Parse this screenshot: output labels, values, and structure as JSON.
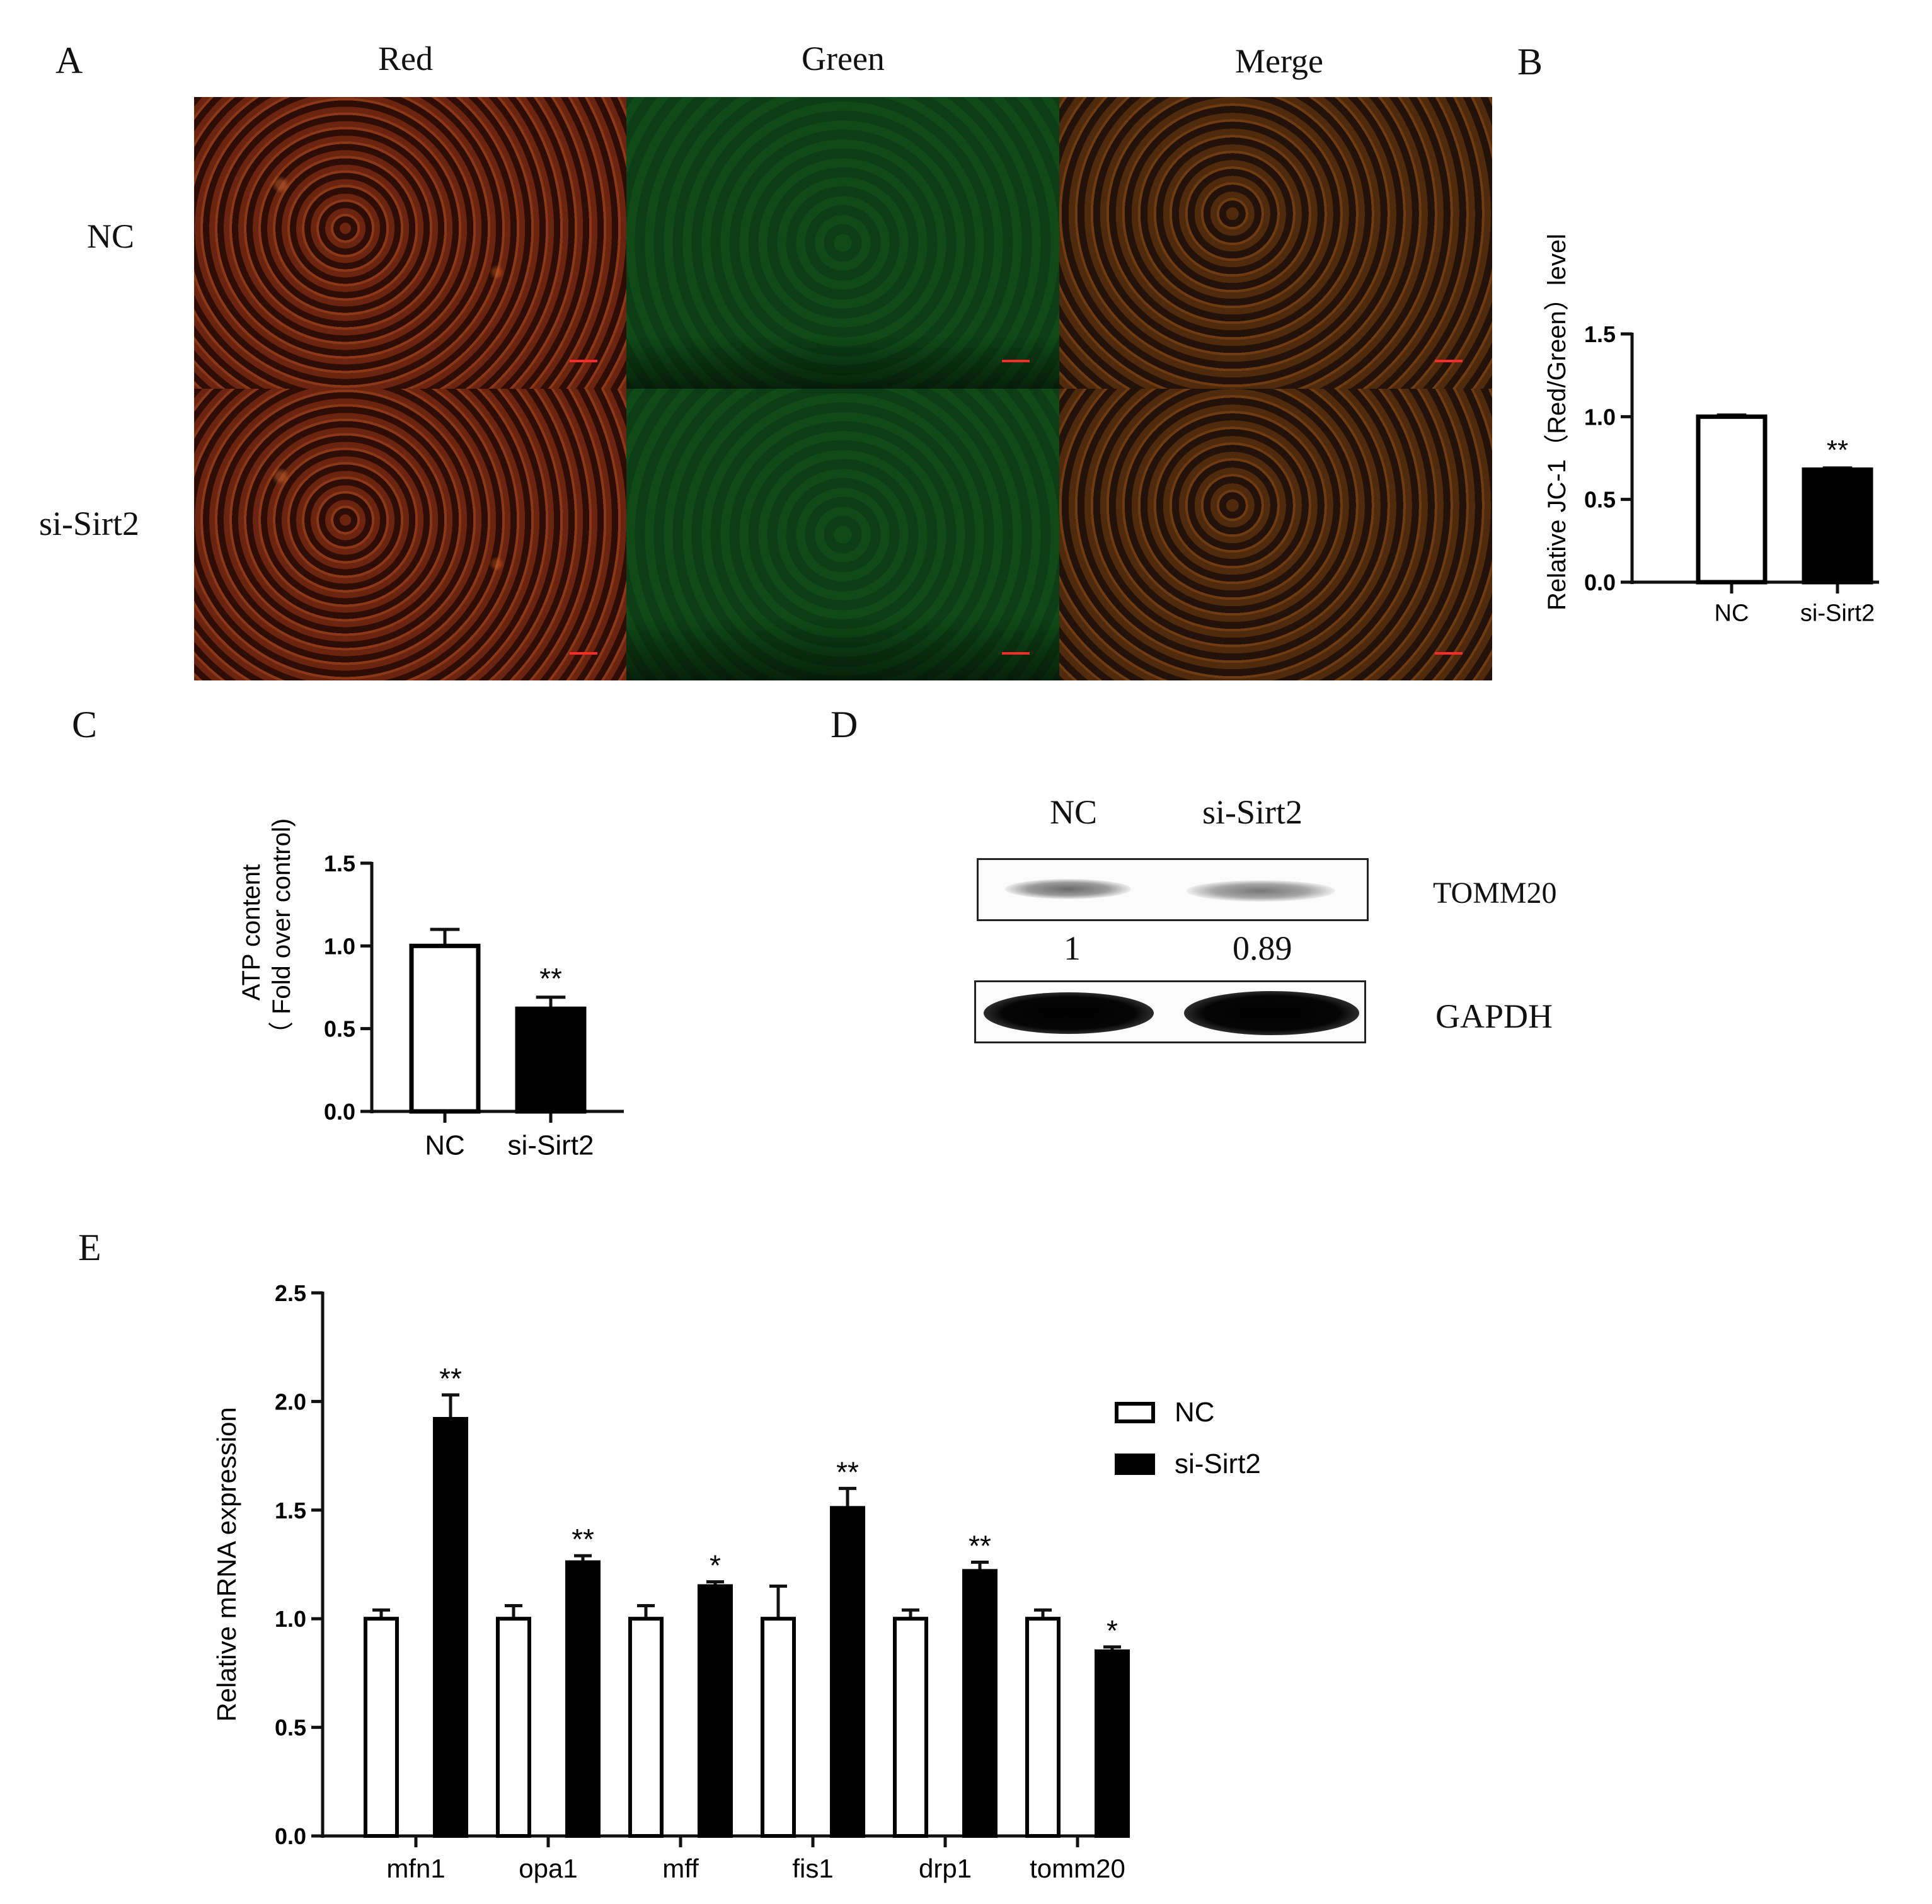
{
  "panels": {
    "a": {
      "letter": "A",
      "columns": [
        "Red",
        "Green",
        "Merge"
      ],
      "rows": [
        "NC",
        "si-Sirt2"
      ]
    },
    "b": {
      "letter": "B"
    },
    "c": {
      "letter": "C"
    },
    "d": {
      "letter": "D",
      "lanes": [
        "NC",
        "si-Sirt2"
      ],
      "proteins": [
        "TOMM20",
        "GAPDH"
      ],
      "quantification": [
        "1",
        "0.89"
      ]
    },
    "e": {
      "letter": "E"
    }
  },
  "chart_data": [
    {
      "panel": "B",
      "type": "bar",
      "categories": [
        "NC",
        "si-Sirt2"
      ],
      "values": [
        1.0,
        0.68
      ],
      "errors": [
        0.01,
        0.01
      ],
      "significance": [
        "",
        "**"
      ],
      "ylabel": "Relative JC-1（Red/Green）level",
      "ylim": [
        0,
        1.5
      ],
      "yticks": [
        "0.0",
        "0.5",
        "1.0",
        "1.5"
      ],
      "bar_fills": [
        "#ffffff",
        "#000000"
      ]
    },
    {
      "panel": "C",
      "type": "bar",
      "categories": [
        "NC",
        "si-Sirt2"
      ],
      "values": [
        1.0,
        0.62
      ],
      "errors": [
        0.1,
        0.07
      ],
      "significance": [
        "",
        "**"
      ],
      "ylabel": [
        "ATP content",
        "（ Fold over control)"
      ],
      "ylim": [
        0,
        1.5
      ],
      "yticks": [
        "0.0",
        "0.5",
        "1.0",
        "1.5"
      ],
      "bar_fills": [
        "#ffffff",
        "#000000"
      ]
    },
    {
      "panel": "E",
      "type": "bar",
      "categories": [
        "mfn1",
        "opa1",
        "mff",
        "fis1",
        "drp1",
        "tomm20"
      ],
      "series": [
        {
          "name": "NC",
          "values": [
            1.0,
            1.0,
            1.0,
            1.0,
            1.0,
            1.0
          ],
          "errors": [
            0.04,
            0.06,
            0.06,
            0.15,
            0.04,
            0.04
          ],
          "fill": "#ffffff"
        },
        {
          "name": "si-Sirt2",
          "values": [
            1.92,
            1.26,
            1.15,
            1.51,
            1.22,
            0.85
          ],
          "errors": [
            0.11,
            0.03,
            0.02,
            0.09,
            0.04,
            0.02
          ],
          "fill": "#000000"
        }
      ],
      "significance": [
        "**",
        "**",
        "*",
        "**",
        "**",
        "*"
      ],
      "ylabel": "Relative mRNA expression",
      "ylim": [
        0,
        2.5
      ],
      "yticks": [
        "0.0",
        "0.5",
        "1.0",
        "1.5",
        "2.0",
        "2.5"
      ],
      "legend": "right"
    }
  ]
}
